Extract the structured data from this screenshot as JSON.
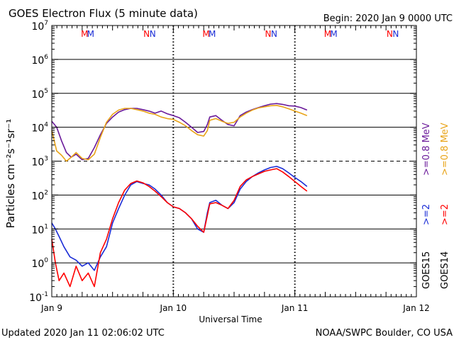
{
  "header": {
    "title": "GOES Electron Flux (5 minute data)",
    "begin": "Begin: 2020 Jan 9 0000 UTC"
  },
  "footer": {
    "updated": "Updated 2020 Jan 11 02:06:02 UTC",
    "credit": "NOAA/SWPC Boulder, CO USA"
  },
  "colors": {
    "goes15_2mev": "#1a2cd6",
    "goes14_2mev": "#ff0000",
    "goes15_08mev": "#6a1a9a",
    "goes14_08mev": "#e8a317",
    "axis": "#000000"
  },
  "chart_data": {
    "type": "line",
    "title": "GOES Electron Flux (5 minute data)",
    "xlabel": "Universal Time",
    "ylabel": "Particles cm⁻²s⁻¹sr⁻¹",
    "x_unit": "days since 2020 Jan 9 00:00 UTC",
    "xlim": [
      0,
      3
    ],
    "ylim_log10": [
      -1,
      7
    ],
    "y_scale": "log",
    "x_ticks": [
      {
        "x": 0,
        "label": "Jan 9"
      },
      {
        "x": 1,
        "label": "Jan 10"
      },
      {
        "x": 2,
        "label": "Jan 11"
      },
      {
        "x": 3,
        "label": "Jan 12"
      }
    ],
    "y_ticks": [
      {
        "exp": -1,
        "base": "10",
        "sup": "-1"
      },
      {
        "exp": 0,
        "base": "10",
        "sup": "0"
      },
      {
        "exp": 1,
        "base": "10",
        "sup": "1"
      },
      {
        "exp": 2,
        "base": "10",
        "sup": "2"
      },
      {
        "exp": 3,
        "base": "10",
        "sup": "3"
      },
      {
        "exp": 4,
        "base": "10",
        "sup": "4"
      },
      {
        "exp": 5,
        "base": "10",
        "sup": "5"
      },
      {
        "exp": 6,
        "base": "10",
        "sup": "6"
      },
      {
        "exp": 7,
        "base": "10",
        "sup": "7"
      }
    ],
    "threshold_line_exp": 3,
    "markers": [
      {
        "x": 0.27,
        "label": "M",
        "color": "#ff0000"
      },
      {
        "x": 0.32,
        "label": "M",
        "color": "#1a2cd6"
      },
      {
        "x": 0.78,
        "label": "N",
        "color": "#ff0000"
      },
      {
        "x": 0.83,
        "label": "N",
        "color": "#1a2cd6"
      },
      {
        "x": 1.27,
        "label": "M",
        "color": "#ff0000"
      },
      {
        "x": 1.32,
        "label": "M",
        "color": "#1a2cd6"
      },
      {
        "x": 1.78,
        "label": "N",
        "color": "#ff0000"
      },
      {
        "x": 1.83,
        "label": "N",
        "color": "#1a2cd6"
      },
      {
        "x": 2.27,
        "label": "M",
        "color": "#ff0000"
      },
      {
        "x": 2.32,
        "label": "M",
        "color": "#1a2cd6"
      },
      {
        "x": 2.78,
        "label": "N",
        "color": "#ff0000"
      },
      {
        "x": 2.83,
        "label": "N",
        "color": "#1a2cd6"
      }
    ],
    "right_labels": {
      "goes15": "GOES15",
      "goes14": "GOES14",
      "goes15_2": ">=2",
      "goes14_2": ">=2",
      "goes15_08": ">=0.8 MeV",
      "goes14_08": ">=0.8 MeV"
    },
    "series": [
      {
        "name": "GOES15 >=0.8 MeV",
        "color": "#6a1a9a",
        "x": [
          0,
          0.04,
          0.08,
          0.12,
          0.16,
          0.2,
          0.25,
          0.3,
          0.35,
          0.4,
          0.45,
          0.5,
          0.55,
          0.6,
          0.65,
          0.7,
          0.75,
          0.8,
          0.85,
          0.9,
          0.95,
          1.0,
          1.05,
          1.1,
          1.15,
          1.2,
          1.25,
          1.28,
          1.3,
          1.35,
          1.4,
          1.45,
          1.5,
          1.55,
          1.6,
          1.65,
          1.7,
          1.75,
          1.8,
          1.85,
          1.9,
          1.95,
          2.0,
          2.05,
          2.1
        ],
        "y": [
          15000,
          10000,
          4000,
          1800,
          1300,
          1600,
          1100,
          1200,
          2500,
          6000,
          13000,
          20000,
          28000,
          33000,
          36000,
          36000,
          33000,
          30000,
          26000,
          30000,
          25000,
          22000,
          19000,
          14000,
          10000,
          7000,
          7500,
          12000,
          20000,
          22000,
          16000,
          12000,
          11000,
          22000,
          28000,
          33000,
          38000,
          43000,
          48000,
          50000,
          47000,
          43000,
          42000,
          38000,
          32000
        ]
      },
      {
        "name": "GOES14 >=0.8 MeV",
        "color": "#e8a317",
        "x": [
          0,
          0.04,
          0.08,
          0.12,
          0.16,
          0.2,
          0.25,
          0.3,
          0.35,
          0.4,
          0.45,
          0.5,
          0.55,
          0.6,
          0.65,
          0.7,
          0.75,
          0.8,
          0.85,
          0.9,
          0.95,
          1.0,
          1.05,
          1.1,
          1.15,
          1.2,
          1.25,
          1.28,
          1.3,
          1.35,
          1.4,
          1.45,
          1.5,
          1.55,
          1.6,
          1.65,
          1.7,
          1.75,
          1.8,
          1.85,
          1.9,
          1.95,
          2.0,
          2.05,
          2.1
        ],
        "y": [
          8000,
          2000,
          1500,
          1000,
          1300,
          1800,
          1200,
          1100,
          1600,
          5000,
          14000,
          24000,
          32000,
          36000,
          36000,
          33000,
          30000,
          26000,
          24000,
          20000,
          18000,
          17000,
          14000,
          11000,
          8000,
          6000,
          5500,
          8000,
          16000,
          18000,
          15000,
          13000,
          14000,
          20000,
          26000,
          32000,
          37000,
          40000,
          43000,
          44000,
          40000,
          35000,
          30000,
          26000,
          22000
        ]
      },
      {
        "name": "GOES15 >=2 MeV",
        "color": "#1a2cd6",
        "x": [
          0,
          0.03,
          0.06,
          0.1,
          0.15,
          0.2,
          0.25,
          0.3,
          0.35,
          0.4,
          0.45,
          0.5,
          0.55,
          0.6,
          0.65,
          0.7,
          0.75,
          0.8,
          0.85,
          0.9,
          0.95,
          1.0,
          1.05,
          1.1,
          1.15,
          1.2,
          1.25,
          1.28,
          1.3,
          1.35,
          1.4,
          1.45,
          1.5,
          1.55,
          1.6,
          1.65,
          1.7,
          1.75,
          1.8,
          1.85,
          1.9,
          1.95,
          2.0,
          2.05,
          2.1
        ],
        "y": [
          15,
          10,
          6,
          3,
          1.5,
          1.2,
          0.8,
          1,
          0.6,
          1.5,
          3,
          15,
          40,
          100,
          200,
          250,
          220,
          200,
          150,
          100,
          60,
          45,
          40,
          30,
          20,
          10,
          8,
          30,
          60,
          70,
          50,
          40,
          60,
          150,
          250,
          350,
          450,
          550,
          650,
          700,
          600,
          450,
          330,
          250,
          180
        ]
      },
      {
        "name": "GOES14 >=2 MeV",
        "color": "#ff0000",
        "x": [
          0,
          0.03,
          0.06,
          0.1,
          0.15,
          0.2,
          0.25,
          0.3,
          0.35,
          0.4,
          0.45,
          0.5,
          0.55,
          0.6,
          0.65,
          0.7,
          0.75,
          0.8,
          0.85,
          0.9,
          0.95,
          1.0,
          1.05,
          1.1,
          1.15,
          1.2,
          1.25,
          1.28,
          1.3,
          1.35,
          1.4,
          1.45,
          1.5,
          1.55,
          1.6,
          1.65,
          1.7,
          1.75,
          1.8,
          1.85,
          1.9,
          1.95,
          2.0,
          2.05,
          2.1
        ],
        "y": [
          5,
          1,
          0.3,
          0.5,
          0.2,
          0.8,
          0.3,
          0.5,
          0.2,
          2,
          5,
          20,
          60,
          140,
          220,
          260,
          230,
          180,
          130,
          90,
          60,
          45,
          40,
          30,
          20,
          12,
          8,
          25,
          55,
          60,
          50,
          40,
          70,
          180,
          280,
          350,
          420,
          500,
          550,
          600,
          480,
          350,
          250,
          180,
          130
        ]
      }
    ]
  }
}
